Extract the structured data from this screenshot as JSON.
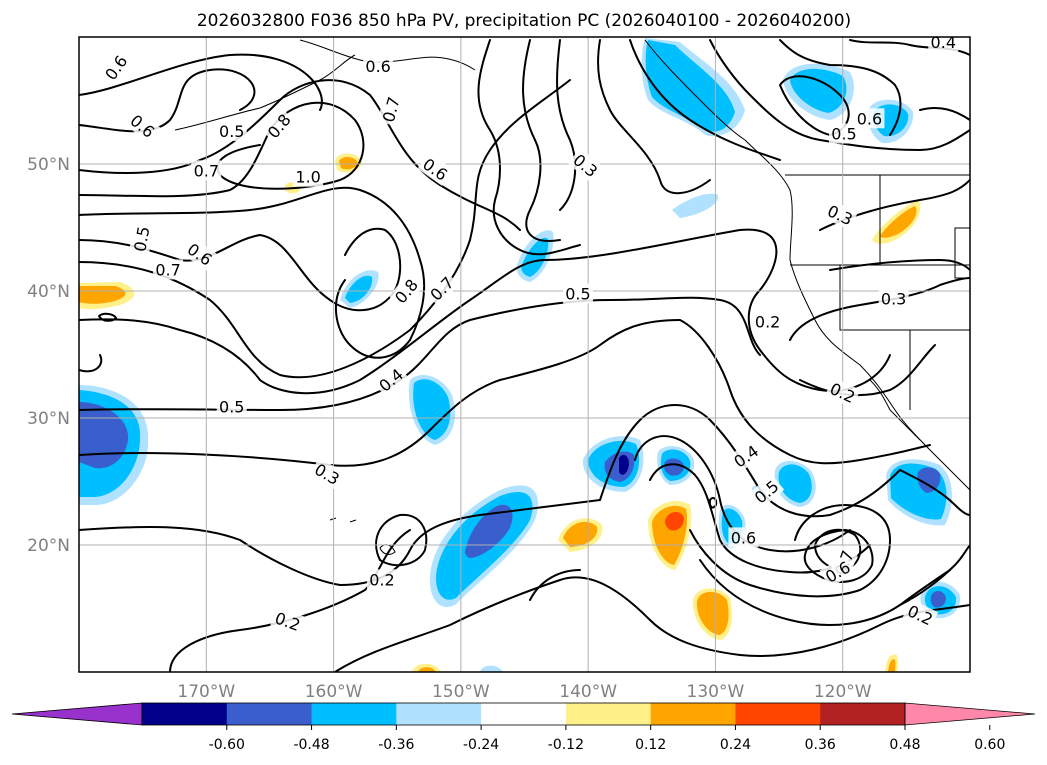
{
  "title": "2026032800 F036 850 hPa PV, precipitation PC (2026040100 - 2026040200)",
  "map": {
    "lon_min": -180,
    "lon_max": -110,
    "lat_min": 10,
    "lat_max": 60,
    "lon_ticks": [
      {
        "lon": -170,
        "label": "170°W"
      },
      {
        "lon": -160,
        "label": "160°W"
      },
      {
        "lon": -150,
        "label": "150°W"
      },
      {
        "lon": -140,
        "label": "140°W"
      },
      {
        "lon": -130,
        "label": "130°W"
      },
      {
        "lon": -120,
        "label": "120°W"
      }
    ],
    "lat_ticks": [
      {
        "lat": 50,
        "label": "50°N"
      },
      {
        "lat": 40,
        "label": "40°N"
      },
      {
        "lat": 30,
        "label": "30°N"
      },
      {
        "lat": 20,
        "label": "20°N"
      }
    ],
    "grid": true
  },
  "colorbar": {
    "colors": [
      "#9932cc",
      "#00008b",
      "#3a5fcd",
      "#00bfff",
      "#b0e2ff",
      "#ffffff",
      "#fff08a",
      "#ffa500",
      "#ff4500",
      "#b22222",
      "#ff88aa"
    ],
    "tick_values": [
      "-0.60",
      "-0.48",
      "-0.36",
      "-0.24",
      "-0.12",
      "0.12",
      "0.24",
      "0.36",
      "0.48",
      "0.60"
    ],
    "extend": "both"
  },
  "contour_labels": [
    {
      "text": "0.6",
      "lon": -177.1,
      "lat": 57.6,
      "angle": -55
    },
    {
      "text": "0.6",
      "lon": -175.0,
      "lat": 53.0,
      "angle": 40
    },
    {
      "text": "0.5",
      "lon": -168.0,
      "lat": 52.6,
      "angle": 0
    },
    {
      "text": "0.8",
      "lon": -164.3,
      "lat": 53.0,
      "angle": -50
    },
    {
      "text": "0.7",
      "lon": -170.0,
      "lat": 49.5,
      "angle": 0
    },
    {
      "text": "1.0",
      "lon": -162.0,
      "lat": 49.0,
      "angle": 0
    },
    {
      "text": "0.6",
      "lon": -152.0,
      "lat": 49.6,
      "angle": 35
    },
    {
      "text": "0.6",
      "lon": -156.5,
      "lat": 57.7,
      "angle": 0
    },
    {
      "text": "0.7",
      "lon": -155.5,
      "lat": 54.3,
      "angle": -75
    },
    {
      "text": "0.5",
      "lon": -175.1,
      "lat": 44.1,
      "angle": -80
    },
    {
      "text": "0.6",
      "lon": -170.5,
      "lat": 42.9,
      "angle": 35
    },
    {
      "text": "0.7",
      "lon": -173.0,
      "lat": 41.7,
      "angle": 0
    },
    {
      "text": "0.8",
      "lon": -154.3,
      "lat": 40.0,
      "angle": -50
    },
    {
      "text": "0.7",
      "lon": -151.5,
      "lat": 40.2,
      "angle": -45
    },
    {
      "text": "0.3",
      "lon": -140.2,
      "lat": 49.9,
      "angle": 40
    },
    {
      "text": "0.5",
      "lon": -140.8,
      "lat": 39.8,
      "angle": 0
    },
    {
      "text": "0.4",
      "lon": -155.5,
      "lat": 33.0,
      "angle": -40
    },
    {
      "text": "0.5",
      "lon": -168.0,
      "lat": 30.9,
      "angle": 0
    },
    {
      "text": "0.3",
      "lon": -160.5,
      "lat": 25.6,
      "angle": 30
    },
    {
      "text": "0.2",
      "lon": -156.2,
      "lat": 17.3,
      "angle": 0
    },
    {
      "text": "0.2",
      "lon": -163.6,
      "lat": 14.0,
      "angle": 20
    },
    {
      "text": "0.4",
      "lon": -112.1,
      "lat": 59.6,
      "angle": 0
    },
    {
      "text": "0.5",
      "lon": -119.9,
      "lat": 52.4,
      "angle": 0
    },
    {
      "text": "0.6",
      "lon": -117.9,
      "lat": 53.6,
      "angle": 0
    },
    {
      "text": "0.3",
      "lon": -120.2,
      "lat": 46.0,
      "angle": 25
    },
    {
      "text": "0.3",
      "lon": -116.0,
      "lat": 39.4,
      "angle": 0
    },
    {
      "text": "0.2",
      "lon": -125.9,
      "lat": 37.6,
      "angle": 0
    },
    {
      "text": "0.2",
      "lon": -120.0,
      "lat": 32.0,
      "angle": 25
    },
    {
      "text": "0.4",
      "lon": -127.6,
      "lat": 27.0,
      "angle": -35
    },
    {
      "text": "0.5",
      "lon": -126.0,
      "lat": 24.2,
      "angle": -40
    },
    {
      "text": "0.6",
      "lon": -127.8,
      "lat": 20.6,
      "angle": 0
    },
    {
      "text": "0.7",
      "lon": -119.9,
      "lat": 18.6,
      "angle": -70
    },
    {
      "text": "0.6",
      "lon": -120.4,
      "lat": 17.9,
      "angle": -30
    },
    {
      "text": "0.2",
      "lon": -113.9,
      "lat": 14.5,
      "angle": 25
    }
  ]
}
